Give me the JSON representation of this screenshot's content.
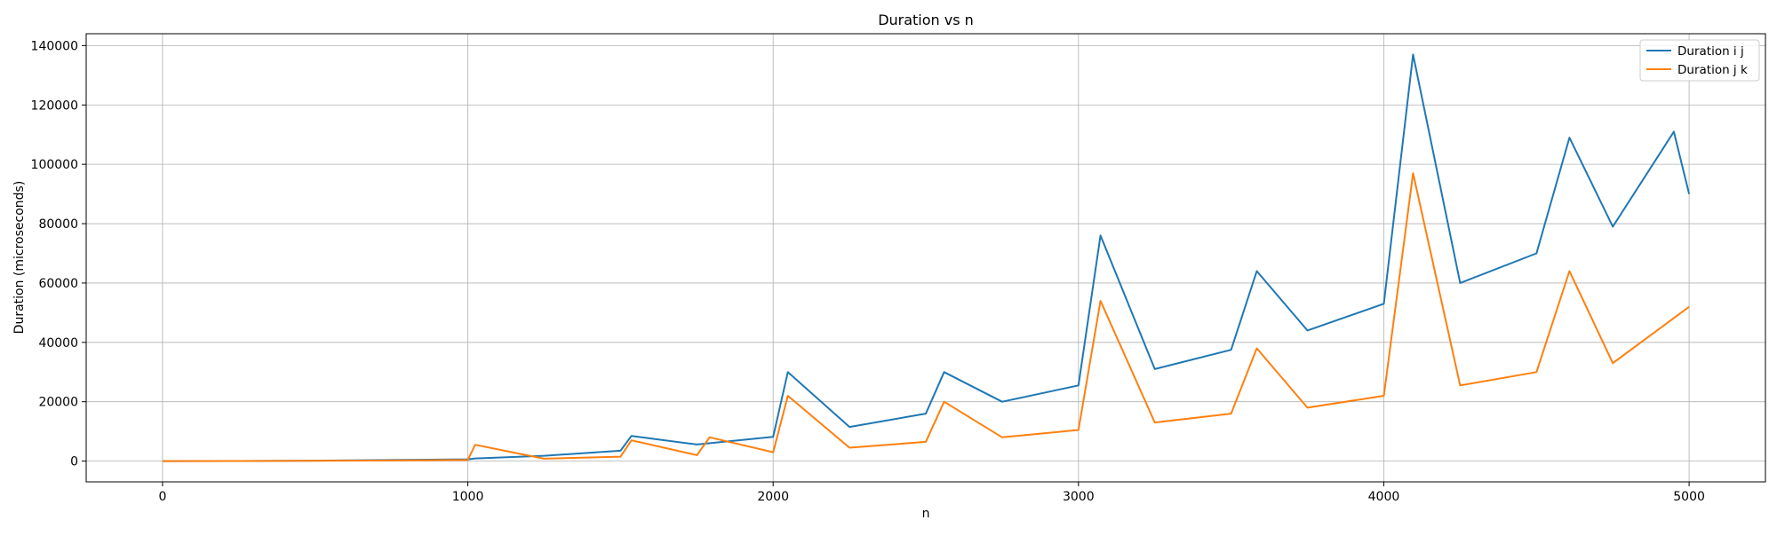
{
  "chart_data": {
    "type": "line",
    "title": "Duration vs n",
    "xlabel": "n",
    "ylabel": "Duration (microseconds)",
    "xlim": [
      -250,
      5250
    ],
    "ylim": [
      -7000,
      144000
    ],
    "xticks": [
      0,
      1000,
      2000,
      3000,
      4000,
      5000
    ],
    "yticks": [
      0,
      20000,
      40000,
      60000,
      80000,
      100000,
      120000,
      140000
    ],
    "xtick_labels": [
      "0",
      "1000",
      "2000",
      "3000",
      "4000",
      "5000"
    ],
    "ytick_labels": [
      "0",
      "20000",
      "40000",
      "60000",
      "80000",
      "100000",
      "120000",
      "140000"
    ],
    "grid": true,
    "legend_position": "top-right",
    "series": [
      {
        "name": "Duration i j",
        "color": "#1f77b4",
        "x": [
          0,
          250,
          500,
          750,
          1000,
          1024,
          1250,
          1500,
          1536,
          1750,
          2000,
          2048,
          2250,
          2500,
          2560,
          2750,
          3000,
          3072,
          3250,
          3500,
          3584,
          3750,
          4000,
          4096,
          4250,
          4500,
          4608,
          4750,
          4950,
          5000
        ],
        "values": [
          0,
          30,
          150,
          350,
          600,
          900,
          1800,
          3500,
          8500,
          5600,
          8200,
          30000,
          11500,
          16000,
          30000,
          20000,
          25500,
          76000,
          31000,
          37500,
          64000,
          44000,
          53000,
          137000,
          60000,
          70000,
          109000,
          79000,
          111000,
          90000
        ]
      },
      {
        "name": "Duration j k",
        "color": "#ff7f0e",
        "x": [
          0,
          250,
          500,
          750,
          1000,
          1024,
          1250,
          1500,
          1536,
          1750,
          1792,
          2000,
          2048,
          2250,
          2500,
          2560,
          2750,
          3000,
          3072,
          3250,
          3500,
          3584,
          3750,
          4000,
          4096,
          4250,
          4500,
          4608,
          4750,
          5000
        ],
        "values": [
          0,
          20,
          100,
          200,
          400,
          5500,
          800,
          1500,
          7000,
          2000,
          8000,
          3000,
          22000,
          4500,
          6500,
          20000,
          8000,
          10500,
          54000,
          13000,
          16000,
          38000,
          18000,
          22000,
          97000,
          25500,
          30000,
          64000,
          33000,
          52000
        ]
      }
    ]
  }
}
